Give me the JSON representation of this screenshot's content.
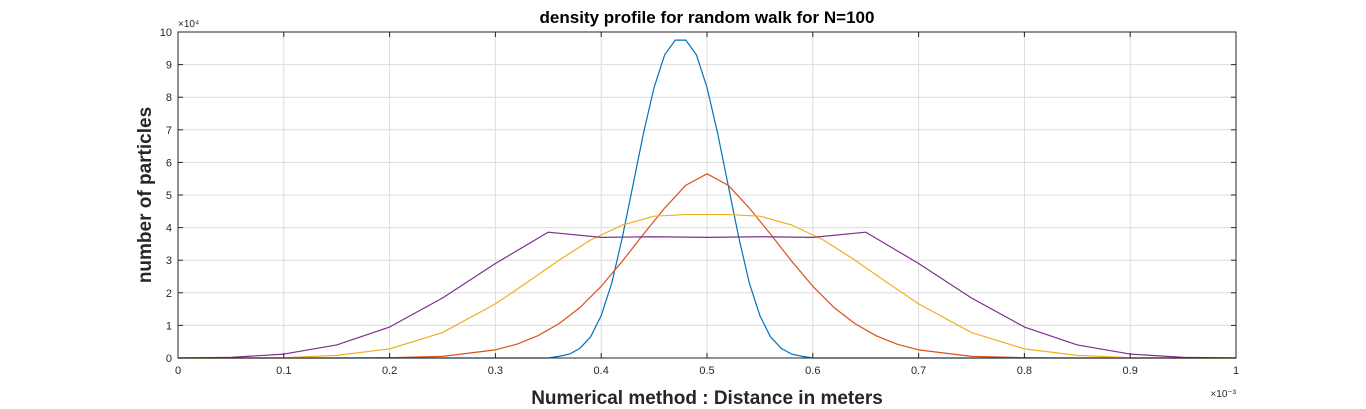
{
  "chart_data": {
    "type": "line",
    "title": "density profile for random walk for N=100",
    "xlabel": "Numerical method : Distance in meters",
    "ylabel": "number of particles",
    "x_exponent_label": "×10⁻³",
    "y_exponent_label": "×10⁴",
    "xlim": [
      0,
      1
    ],
    "ylim": [
      0,
      10
    ],
    "x_ticks": [
      0,
      0.1,
      0.2,
      0.3,
      0.4,
      0.5,
      0.6,
      0.7,
      0.8,
      0.9,
      1
    ],
    "y_ticks": [
      0,
      1,
      2,
      3,
      4,
      5,
      6,
      7,
      8,
      9,
      10
    ],
    "x_tick_labels": [
      "0",
      "0.1",
      "0.2",
      "0.3",
      "0.4",
      "0.5",
      "0.6",
      "0.7",
      "0.8",
      "0.9",
      "1"
    ],
    "y_tick_labels": [
      "0",
      "1",
      "2",
      "3",
      "4",
      "5",
      "6",
      "7",
      "8",
      "9",
      "10"
    ],
    "grid": true,
    "series": [
      {
        "color": "#0072BD",
        "x": [
          0,
          0.05,
          0.1,
          0.15,
          0.2,
          0.25,
          0.3,
          0.35,
          0.36,
          0.37,
          0.38,
          0.39,
          0.4,
          0.41,
          0.42,
          0.43,
          0.44,
          0.45,
          0.46,
          0.47,
          0.48,
          0.49,
          0.5,
          0.51,
          0.52,
          0.53,
          0.54,
          0.55,
          0.56,
          0.57,
          0.58,
          0.59,
          0.6,
          0.61,
          0.62,
          0.63,
          0.64,
          0.65,
          0.7,
          0.75,
          0.8,
          0.85,
          0.9,
          0.95,
          1
        ],
        "y": [
          0,
          0,
          0,
          0,
          0,
          0,
          0,
          0,
          0.05,
          0.12,
          0.3,
          0.65,
          1.3,
          2.3,
          3.7,
          5.3,
          6.9,
          8.3,
          9.3,
          9.75,
          9.75,
          9.3,
          8.3,
          6.9,
          5.3,
          3.7,
          2.3,
          1.3,
          0.65,
          0.3,
          0.12,
          0.05,
          0,
          0,
          0,
          0,
          0,
          0,
          0,
          0,
          0,
          0,
          0,
          0,
          0
        ]
      },
      {
        "color": "#D95319",
        "x": [
          0,
          0.05,
          0.1,
          0.15,
          0.2,
          0.25,
          0.3,
          0.32,
          0.34,
          0.36,
          0.38,
          0.4,
          0.42,
          0.44,
          0.46,
          0.48,
          0.5,
          0.52,
          0.54,
          0.56,
          0.58,
          0.6,
          0.62,
          0.64,
          0.66,
          0.68,
          0.7,
          0.75,
          0.8,
          0.85,
          0.9,
          0.95,
          1
        ],
        "y": [
          0,
          0,
          0,
          0,
          0.01,
          0.05,
          0.25,
          0.42,
          0.68,
          1.05,
          1.55,
          2.2,
          2.97,
          3.8,
          4.6,
          5.3,
          5.65,
          5.3,
          4.6,
          3.8,
          2.97,
          2.2,
          1.55,
          1.05,
          0.68,
          0.42,
          0.25,
          0.05,
          0.01,
          0,
          0,
          0,
          0
        ]
      },
      {
        "color": "#EDB120",
        "x": [
          0,
          0.05,
          0.1,
          0.15,
          0.2,
          0.25,
          0.3,
          0.33,
          0.36,
          0.39,
          0.42,
          0.45,
          0.48,
          0.5,
          0.52,
          0.55,
          0.58,
          0.61,
          0.64,
          0.67,
          0.7,
          0.75,
          0.8,
          0.85,
          0.9,
          0.95,
          1
        ],
        "y": [
          0,
          0,
          0.01,
          0.08,
          0.28,
          0.78,
          1.66,
          2.32,
          3.0,
          3.62,
          4.08,
          4.35,
          4.4,
          4.4,
          4.4,
          4.35,
          4.08,
          3.62,
          3.0,
          2.32,
          1.66,
          0.78,
          0.28,
          0.08,
          0.01,
          0,
          0
        ]
      },
      {
        "color": "#7E2F8E",
        "x": [
          0,
          0.05,
          0.1,
          0.15,
          0.2,
          0.25,
          0.3,
          0.35,
          0.4,
          0.45,
          0.5,
          0.55,
          0.6,
          0.65,
          0.7,
          0.75,
          0.8,
          0.85,
          0.9,
          0.95,
          1
        ],
        "y": [
          0,
          0.02,
          0.12,
          0.4,
          0.95,
          1.84,
          2.9,
          3.86,
          3.7,
          3.72,
          3.7,
          3.72,
          3.7,
          3.86,
          2.9,
          1.84,
          0.95,
          0.4,
          0.12,
          0.02,
          0
        ]
      }
    ]
  }
}
